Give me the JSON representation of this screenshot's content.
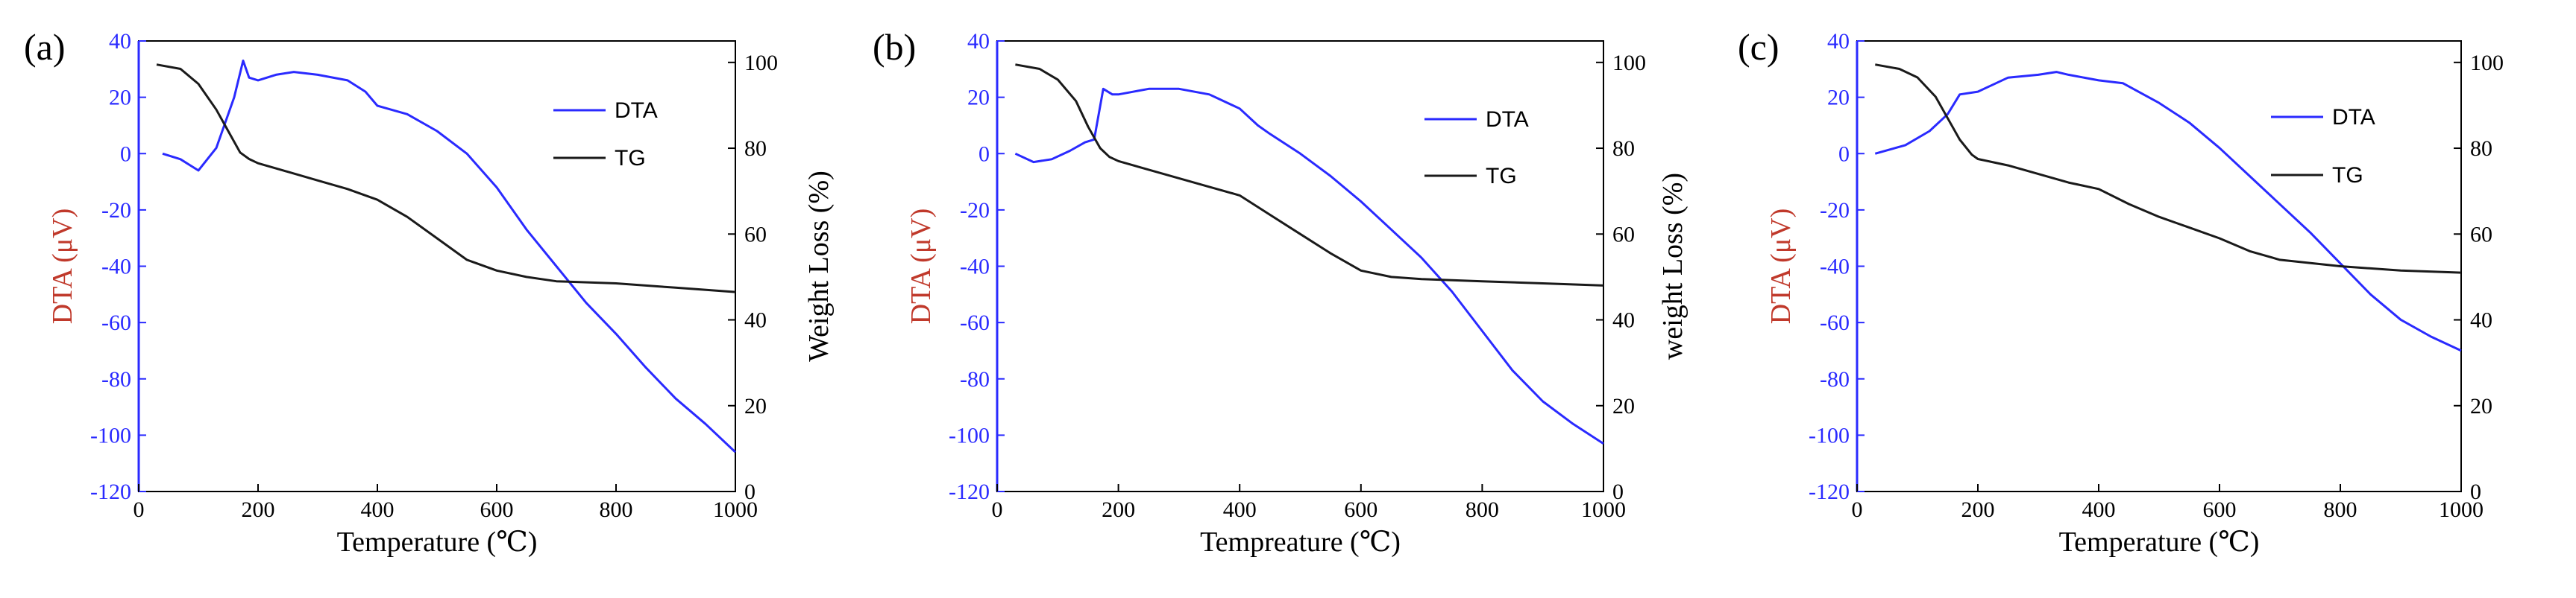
{
  "colors": {
    "dta": "#2a2aff",
    "tg": "#1a1a1a",
    "dta_axis_label": "#c0392b",
    "axis": "#000000"
  },
  "chart_data": [
    {
      "type": "line",
      "panel_label": "(a)",
      "xlabel": "Temperature (℃)",
      "ylabel_left": "DTA (μV)",
      "ylabel_right": "Weight Loss (%)",
      "xlim": [
        0,
        1000
      ],
      "ylim_left": [
        -120,
        40
      ],
      "ylim_right": [
        0,
        105
      ],
      "x_ticks": [
        "0",
        "200",
        "400",
        "600",
        "800",
        "1000"
      ],
      "y_left_ticks": [
        "40",
        "20",
        "0",
        "-20",
        "-40",
        "-60",
        "-80",
        "-100",
        "-120"
      ],
      "y_right_ticks": [
        "100",
        "80",
        "60",
        "40",
        "20",
        "0"
      ],
      "series": [
        {
          "name": "DTA",
          "axis": "left",
          "x": [
            40,
            70,
            100,
            130,
            160,
            175,
            185,
            200,
            230,
            260,
            300,
            350,
            380,
            400,
            450,
            500,
            550,
            600,
            650,
            700,
            750,
            800,
            850,
            900,
            950,
            1000
          ],
          "values": [
            0,
            -2,
            -6,
            2,
            20,
            33,
            27,
            26,
            28,
            29,
            28,
            26,
            22,
            17,
            14,
            8,
            0,
            -12,
            -27,
            -40,
            -53,
            -64,
            -76,
            -87,
            -96,
            -106
          ]
        },
        {
          "name": "TG",
          "axis": "right",
          "x": [
            30,
            70,
            100,
            130,
            150,
            170,
            185,
            200,
            250,
            300,
            350,
            400,
            450,
            500,
            550,
            600,
            650,
            700,
            800,
            900,
            1000
          ],
          "values": [
            99.5,
            98.5,
            95,
            89,
            84,
            79,
            77.5,
            76.5,
            74.5,
            72.5,
            70.5,
            68,
            64,
            59,
            54,
            51.5,
            50,
            49,
            48.5,
            47.5,
            46.5
          ]
        }
      ],
      "legend": [
        "DTA",
        "TG"
      ]
    },
    {
      "type": "line",
      "panel_label": "(b)",
      "xlabel": "Tempreature (℃)",
      "ylabel_left": "DTA (μV)",
      "ylabel_right": "weight Loss (%)",
      "xlim": [
        0,
        1000
      ],
      "ylim_left": [
        -120,
        40
      ],
      "ylim_right": [
        0,
        105
      ],
      "x_ticks": [
        "0",
        "200",
        "400",
        "600",
        "800",
        "1000"
      ],
      "y_left_ticks": [
        "40",
        "20",
        "0",
        "-20",
        "-40",
        "-60",
        "-80",
        "-100",
        "-120"
      ],
      "y_right_ticks": [
        "100",
        "80",
        "60",
        "40",
        "20",
        "0"
      ],
      "series": [
        {
          "name": "DTA",
          "axis": "left",
          "x": [
            30,
            60,
            90,
            120,
            145,
            160,
            175,
            190,
            200,
            250,
            300,
            350,
            400,
            430,
            450,
            500,
            550,
            600,
            650,
            700,
            750,
            800,
            850,
            900,
            950,
            1000
          ],
          "values": [
            0,
            -3,
            -2,
            1,
            4,
            5,
            23,
            21,
            21,
            23,
            23,
            21,
            16,
            10,
            7,
            0,
            -8,
            -17,
            -27,
            -37,
            -49,
            -63,
            -77,
            -88,
            -96,
            -103
          ]
        },
        {
          "name": "TG",
          "axis": "right",
          "x": [
            30,
            70,
            100,
            130,
            150,
            170,
            185,
            200,
            250,
            300,
            350,
            400,
            450,
            500,
            550,
            600,
            650,
            700,
            800,
            900,
            1000
          ],
          "values": [
            99.5,
            98.5,
            96,
            91,
            85,
            80,
            78,
            77,
            75,
            73,
            71,
            69,
            64.5,
            60,
            55.5,
            51.5,
            50,
            49.5,
            49,
            48.5,
            48
          ]
        }
      ],
      "legend": [
        "DTA",
        "TG"
      ]
    },
    {
      "type": "line",
      "panel_label": "(c)",
      "xlabel": "Temperature (℃)",
      "ylabel_left": "DTA (μV)",
      "ylabel_right": "",
      "xlim": [
        0,
        1000
      ],
      "ylim_left": [
        -120,
        40
      ],
      "ylim_right": [
        0,
        105
      ],
      "x_ticks": [
        "0",
        "200",
        "400",
        "600",
        "800",
        "1000"
      ],
      "y_left_ticks": [
        "40",
        "20",
        "0",
        "-20",
        "-40",
        "-60",
        "-80",
        "-100",
        "-120"
      ],
      "y_right_ticks": [
        "100",
        "80",
        "60",
        "40",
        "20",
        "0"
      ],
      "series": [
        {
          "name": "DTA",
          "axis": "left",
          "x": [
            30,
            80,
            120,
            150,
            170,
            200,
            250,
            300,
            330,
            350,
            400,
            440,
            500,
            550,
            600,
            650,
            700,
            750,
            800,
            850,
            900,
            950,
            1000
          ],
          "values": [
            0,
            3,
            8,
            14,
            21,
            22,
            27,
            28,
            29,
            28,
            26,
            25,
            18,
            11,
            2,
            -8,
            -18,
            -28,
            -39,
            -50,
            -59,
            -65,
            -70
          ]
        },
        {
          "name": "TG",
          "axis": "right",
          "x": [
            30,
            70,
            100,
            130,
            150,
            170,
            190,
            200,
            250,
            300,
            350,
            400,
            450,
            500,
            550,
            600,
            650,
            700,
            800,
            900,
            1000
          ],
          "values": [
            99.5,
            98.5,
            96.5,
            92,
            87,
            82,
            78.5,
            77.5,
            76,
            74,
            72,
            70.5,
            67,
            64,
            61.5,
            59,
            56,
            54,
            52.5,
            51.5,
            51
          ]
        }
      ],
      "legend": [
        "DTA",
        "TG"
      ]
    }
  ]
}
